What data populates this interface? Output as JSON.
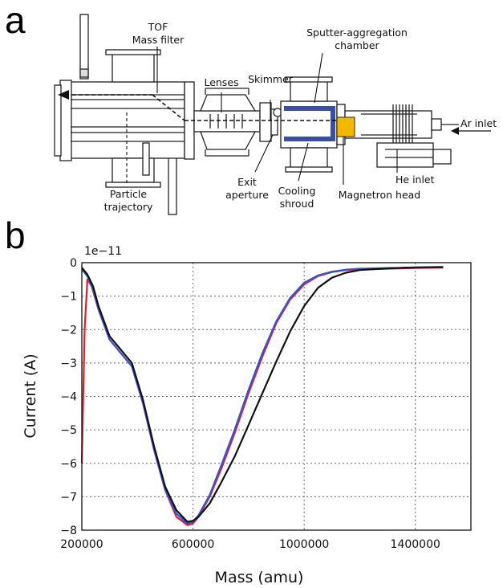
{
  "panels": {
    "a": "a",
    "b": "b"
  },
  "diagram": {
    "labels": {
      "tof": "TOF",
      "mass_filter": "Mass filter",
      "lenses": "Lenses",
      "skimmer": "Skimmer",
      "sputter": "Sputter-aggregation",
      "chamber": "chamber",
      "ar_inlet": "Ar inlet",
      "particle": "Particle",
      "trajectory": "trajectory",
      "exit": "Exit",
      "aperture": "aperture",
      "cooling": "Cooling",
      "shroud": "shroud",
      "he_inlet": "He inlet",
      "magnetron": "Magnetron head"
    },
    "colors": {
      "shroud": "#3a4fa0",
      "magnetron": "#f5b800",
      "line": "#222222"
    }
  },
  "chart_data": {
    "type": "line",
    "title": "",
    "xlabel": "Mass (amu)",
    "ylabel": "Current (A)",
    "y_multiplier": "1e−11",
    "xlim": [
      200000,
      1600000
    ],
    "ylim": [
      -8,
      0
    ],
    "xticks": [
      200000,
      600000,
      1000000,
      1400000
    ],
    "yticks": [
      0,
      -1,
      -2,
      -3,
      -4,
      -5,
      -6,
      -7,
      -8
    ],
    "xtick_labels": [
      "200000",
      "600000",
      "1000000",
      "1400000"
    ],
    "ytick_labels": [
      "0",
      "−1",
      "−2",
      "−3",
      "−4",
      "−5",
      "−6",
      "−7",
      "−8"
    ],
    "grid": true,
    "legend": "none",
    "series": [
      {
        "color": "#e8192c",
        "x": [
          200000,
          210000,
          220000,
          235000,
          260000,
          300000,
          340000,
          380000,
          420000,
          460000,
          500000,
          540000,
          580000,
          600000,
          620000,
          660000,
          700000,
          750000,
          800000,
          850000,
          900000,
          950000,
          1000000,
          1050000,
          1100000,
          1150000,
          1200000,
          1300000,
          1400000,
          1500000
        ],
        "y": [
          -6.0,
          -2.0,
          -0.5,
          -0.7,
          -1.4,
          -2.3,
          -2.7,
          -3.1,
          -4.2,
          -5.6,
          -6.8,
          -7.6,
          -7.85,
          -7.8,
          -7.6,
          -7.0,
          -6.2,
          -5.1,
          -3.9,
          -2.8,
          -1.8,
          -1.1,
          -0.65,
          -0.4,
          -0.28,
          -0.22,
          -0.2,
          -0.18,
          -0.16,
          -0.15
        ]
      },
      {
        "color": "#3355cc",
        "x": [
          200000,
          220000,
          240000,
          260000,
          300000,
          340000,
          380000,
          420000,
          460000,
          500000,
          540000,
          580000,
          600000,
          620000,
          660000,
          700000,
          750000,
          800000,
          850000,
          900000,
          950000,
          1000000,
          1050000,
          1100000,
          1150000,
          1200000,
          1300000,
          1400000,
          1500000
        ],
        "y": [
          -0.2,
          -0.4,
          -0.8,
          -1.4,
          -2.3,
          -2.7,
          -3.1,
          -4.2,
          -5.6,
          -6.8,
          -7.5,
          -7.8,
          -7.75,
          -7.55,
          -6.95,
          -6.1,
          -5.0,
          -3.8,
          -2.7,
          -1.75,
          -1.05,
          -0.6,
          -0.38,
          -0.27,
          -0.21,
          -0.18,
          -0.16,
          -0.15,
          -0.14
        ]
      },
      {
        "color": "#111111",
        "x": [
          200000,
          220000,
          240000,
          260000,
          300000,
          340000,
          380000,
          420000,
          460000,
          500000,
          540000,
          580000,
          600000,
          620000,
          660000,
          700000,
          750000,
          800000,
          850000,
          900000,
          950000,
          1000000,
          1050000,
          1100000,
          1150000,
          1200000,
          1300000,
          1400000,
          1500000
        ],
        "y": [
          -0.15,
          -0.35,
          -0.7,
          -1.3,
          -2.2,
          -2.6,
          -3.0,
          -4.1,
          -5.5,
          -6.7,
          -7.4,
          -7.75,
          -7.72,
          -7.6,
          -7.2,
          -6.6,
          -5.8,
          -4.85,
          -3.9,
          -2.95,
          -2.05,
          -1.3,
          -0.75,
          -0.45,
          -0.3,
          -0.22,
          -0.17,
          -0.14,
          -0.13
        ]
      }
    ]
  }
}
